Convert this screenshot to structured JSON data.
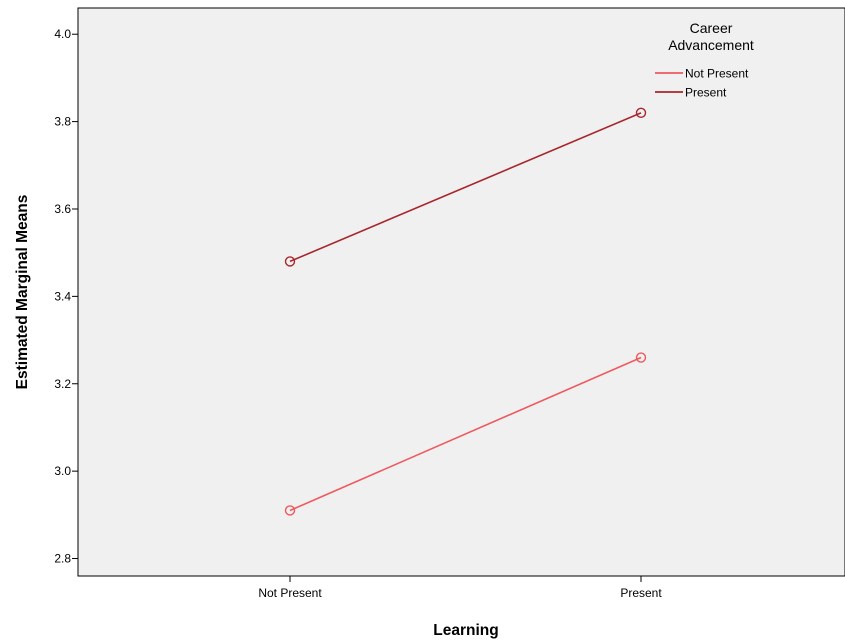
{
  "chart_data": {
    "type": "line",
    "title": "",
    "xlabel": "Learning",
    "ylabel": "Estimated Marginal Means",
    "categories": [
      "Not Present",
      "Present"
    ],
    "ylim": [
      2.76,
      4.06
    ],
    "yticks": [
      2.8,
      3.0,
      3.2,
      3.4,
      3.6,
      3.8,
      4.0
    ],
    "ytick_labels": [
      "2.8",
      "3.0",
      "3.2",
      "3.4",
      "3.6",
      "3.8",
      "4.0"
    ],
    "grid": false,
    "plot_background": "#f0f0f0",
    "legend": {
      "title_lines": [
        "Career",
        "Advancement"
      ],
      "placement": "top-right"
    },
    "series": [
      {
        "name": "Not Present",
        "values": [
          2.91,
          3.26
        ],
        "color": "#f0585e",
        "marker": "circle"
      },
      {
        "name": "Present",
        "values": [
          3.48,
          3.82
        ],
        "color": "#a8262c",
        "marker": "circle"
      }
    ]
  }
}
